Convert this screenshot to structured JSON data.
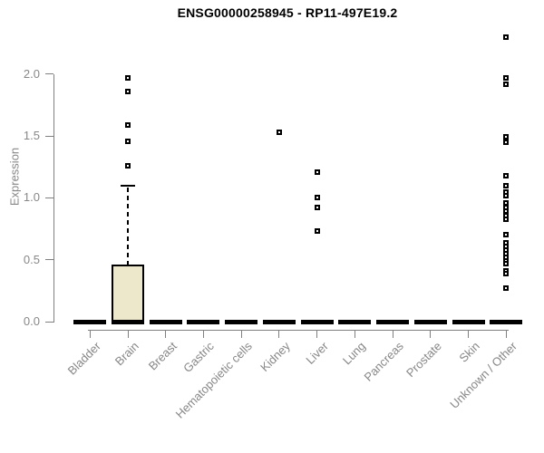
{
  "chart_data": {
    "type": "boxplot",
    "title": "ENSG00000258945 - RP11-497E19.2",
    "ylabel": "Expression",
    "ylim": [
      0,
      2.35
    ],
    "yticks": [
      "0.0",
      "0.5",
      "1.0",
      "1.5",
      "2.0"
    ],
    "grid": false,
    "categories": [
      "Bladder",
      "Brain",
      "Breast",
      "Gastric",
      "Hematopoietic cells",
      "Kidney",
      "Liver",
      "Lung",
      "Pancreas",
      "Prostate",
      "Skin",
      "Unknown / Other"
    ],
    "boxes": [
      {
        "category": "Bladder",
        "median": 0,
        "q1": 0,
        "q3": 0,
        "whisker_low": 0,
        "whisker_high": 0,
        "outliers": []
      },
      {
        "category": "Brain",
        "median": 0,
        "q1": 0,
        "q3": 0.46,
        "whisker_low": 0,
        "whisker_high": 1.1,
        "outliers": [
          1.26,
          1.46,
          1.59,
          1.86,
          1.97
        ]
      },
      {
        "category": "Breast",
        "median": 0,
        "q1": 0,
        "q3": 0,
        "whisker_low": 0,
        "whisker_high": 0,
        "outliers": []
      },
      {
        "category": "Gastric",
        "median": 0,
        "q1": 0,
        "q3": 0,
        "whisker_low": 0,
        "whisker_high": 0,
        "outliers": []
      },
      {
        "category": "Hematopoietic cells",
        "median": 0,
        "q1": 0,
        "q3": 0,
        "whisker_low": 0,
        "whisker_high": 0,
        "outliers": []
      },
      {
        "category": "Kidney",
        "median": 0,
        "q1": 0,
        "q3": 0,
        "whisker_low": 0,
        "whisker_high": 0,
        "outliers": [
          1.53
        ]
      },
      {
        "category": "Liver",
        "median": 0,
        "q1": 0,
        "q3": 0,
        "whisker_low": 0,
        "whisker_high": 0,
        "outliers": [
          0.73,
          0.92,
          1.0,
          1.21
        ]
      },
      {
        "category": "Lung",
        "median": 0,
        "q1": 0,
        "q3": 0,
        "whisker_low": 0,
        "whisker_high": 0,
        "outliers": []
      },
      {
        "category": "Pancreas",
        "median": 0,
        "q1": 0,
        "q3": 0,
        "whisker_low": 0,
        "whisker_high": 0,
        "outliers": []
      },
      {
        "category": "Prostate",
        "median": 0,
        "q1": 0,
        "q3": 0,
        "whisker_low": 0,
        "whisker_high": 0,
        "outliers": []
      },
      {
        "category": "Skin",
        "median": 0,
        "q1": 0,
        "q3": 0,
        "whisker_low": 0,
        "whisker_high": 0,
        "outliers": []
      },
      {
        "category": "Unknown / Other",
        "median": 0,
        "q1": 0,
        "q3": 0,
        "whisker_low": 0,
        "whisker_high": 0,
        "outliers": [
          2.3,
          1.97,
          1.92,
          1.49,
          1.45,
          1.18,
          1.1,
          1.05,
          1.02,
          0.96,
          0.92,
          0.89,
          0.86,
          0.83,
          0.7,
          0.64,
          0.61,
          0.58,
          0.55,
          0.52,
          0.49,
          0.47,
          0.41,
          0.39,
          0.27
        ]
      }
    ],
    "colors": {
      "box_fill": "#ede8cb",
      "box_border": "#000000",
      "median": "#000000",
      "whisker": "#000000",
      "marker_border": "#000000",
      "marker_fill": "#ffffff",
      "axis": "#808080",
      "tick_text": "#878787",
      "title_text": "#000000",
      "background": "#ffffff"
    },
    "legend": null
  }
}
